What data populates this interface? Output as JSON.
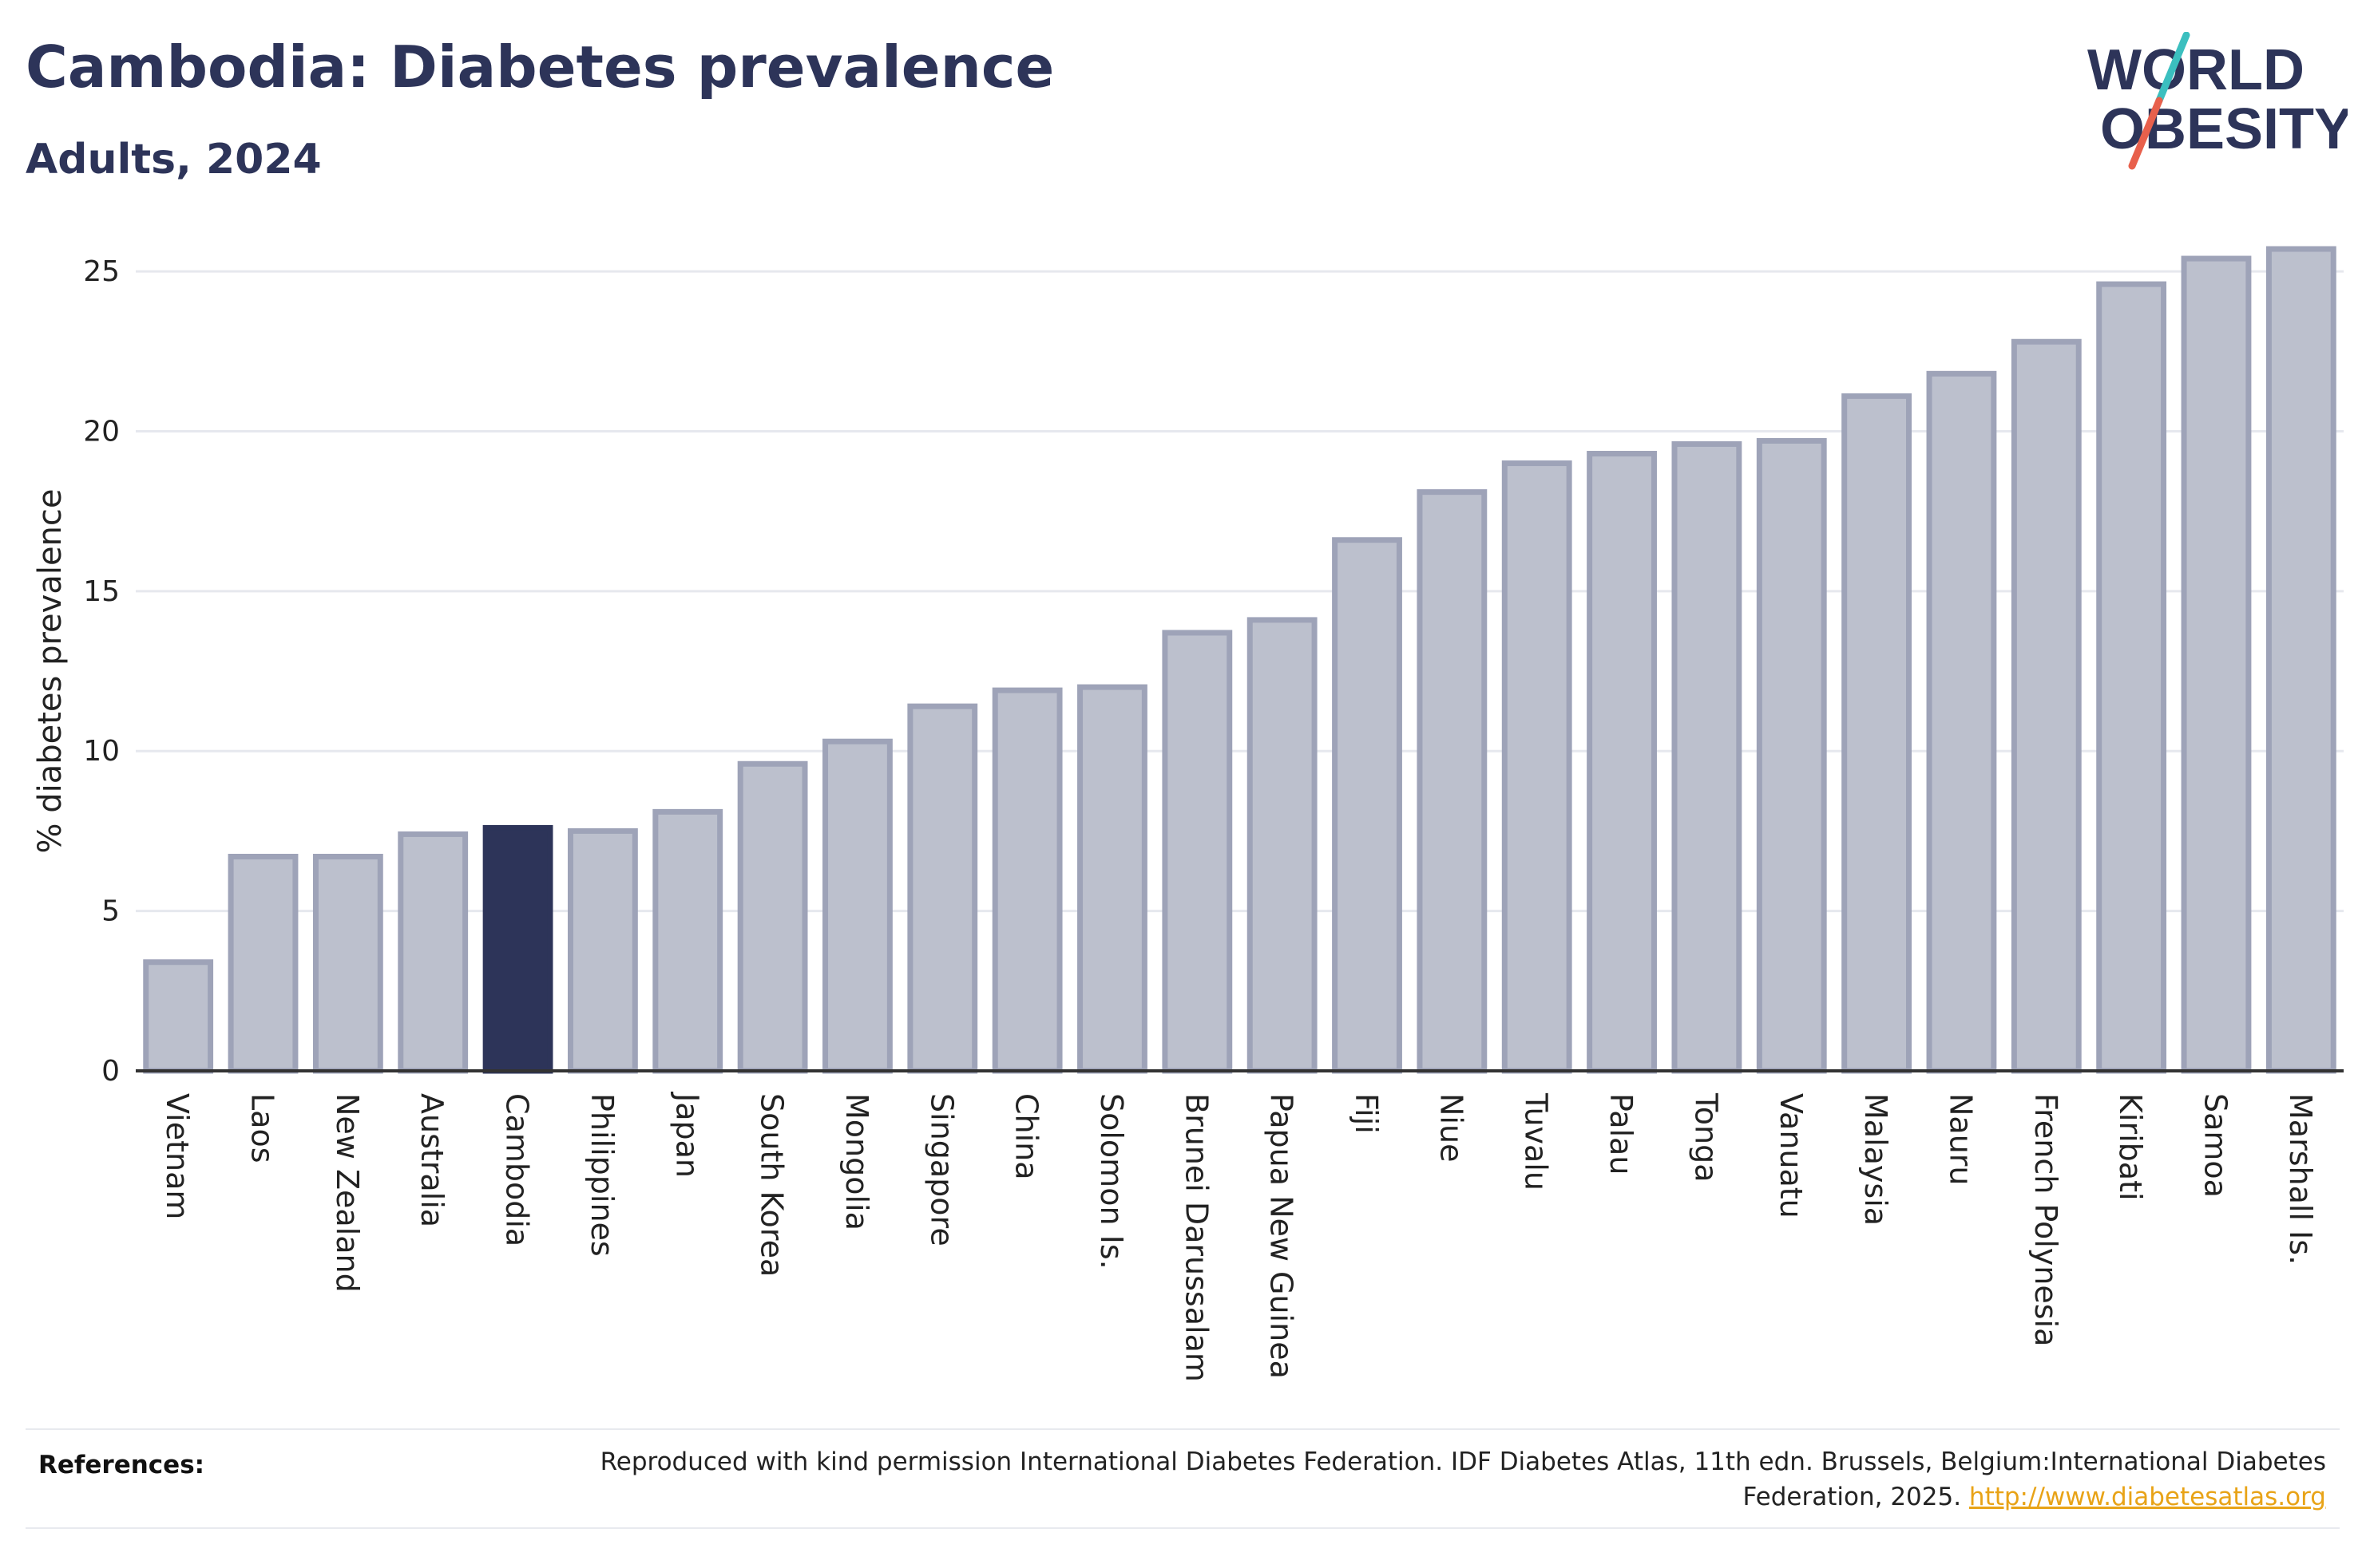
{
  "header": {
    "title": "Cambodia: Diabetes prevalence",
    "subtitle": "Adults, 2024"
  },
  "logo": {
    "line1": "WORLD",
    "line2": "OBESITY",
    "accent_teal": "#3bbfbf",
    "accent_coral": "#e8604c",
    "text_color": "#2d3459"
  },
  "chart_data": {
    "type": "bar",
    "title": "Cambodia: Diabetes prevalence",
    "subtitle": "Adults, 2024",
    "xlabel": "",
    "ylabel": "% diabetes prevalence",
    "ylim": [
      0,
      26
    ],
    "yticks": [
      0,
      5,
      10,
      15,
      20,
      25
    ],
    "grid": true,
    "highlight": "Cambodia",
    "colors": {
      "bar": "#bcc0cd",
      "bar_edge": "#9ea3b8",
      "highlight": "#2d3459",
      "grid": "#e6e8ee",
      "axis": "#333333"
    },
    "categories": [
      "Vietnam",
      "Laos",
      "New Zealand",
      "Australia",
      "Cambodia",
      "Philippines",
      "Japan",
      "South Korea",
      "Mongolia",
      "Singapore",
      "China",
      "Solomon Is.",
      "Brunei Darussalam",
      "Papua New Guinea",
      "Fiji",
      "Niue",
      "Tuvalu",
      "Palau",
      "Tonga",
      "Vanuatu",
      "Malaysia",
      "Nauru",
      "French Polynesia",
      "Kiribati",
      "Samoa",
      "Marshall Is."
    ],
    "values": [
      3.4,
      6.7,
      6.7,
      7.4,
      7.6,
      7.5,
      8.1,
      9.6,
      10.3,
      11.4,
      11.9,
      12.0,
      13.7,
      14.1,
      16.6,
      18.1,
      19.0,
      19.3,
      19.6,
      19.7,
      21.1,
      21.8,
      22.8,
      24.6,
      25.4,
      25.7
    ]
  },
  "references": {
    "label": "References:",
    "text": "Reproduced with kind permission International Diabetes Federation. IDF Diabetes Atlas, 11th edn. Brussels, Belgium:International Diabetes Federation, 2025. ",
    "link": "http://www.diabetesatlas.org"
  }
}
